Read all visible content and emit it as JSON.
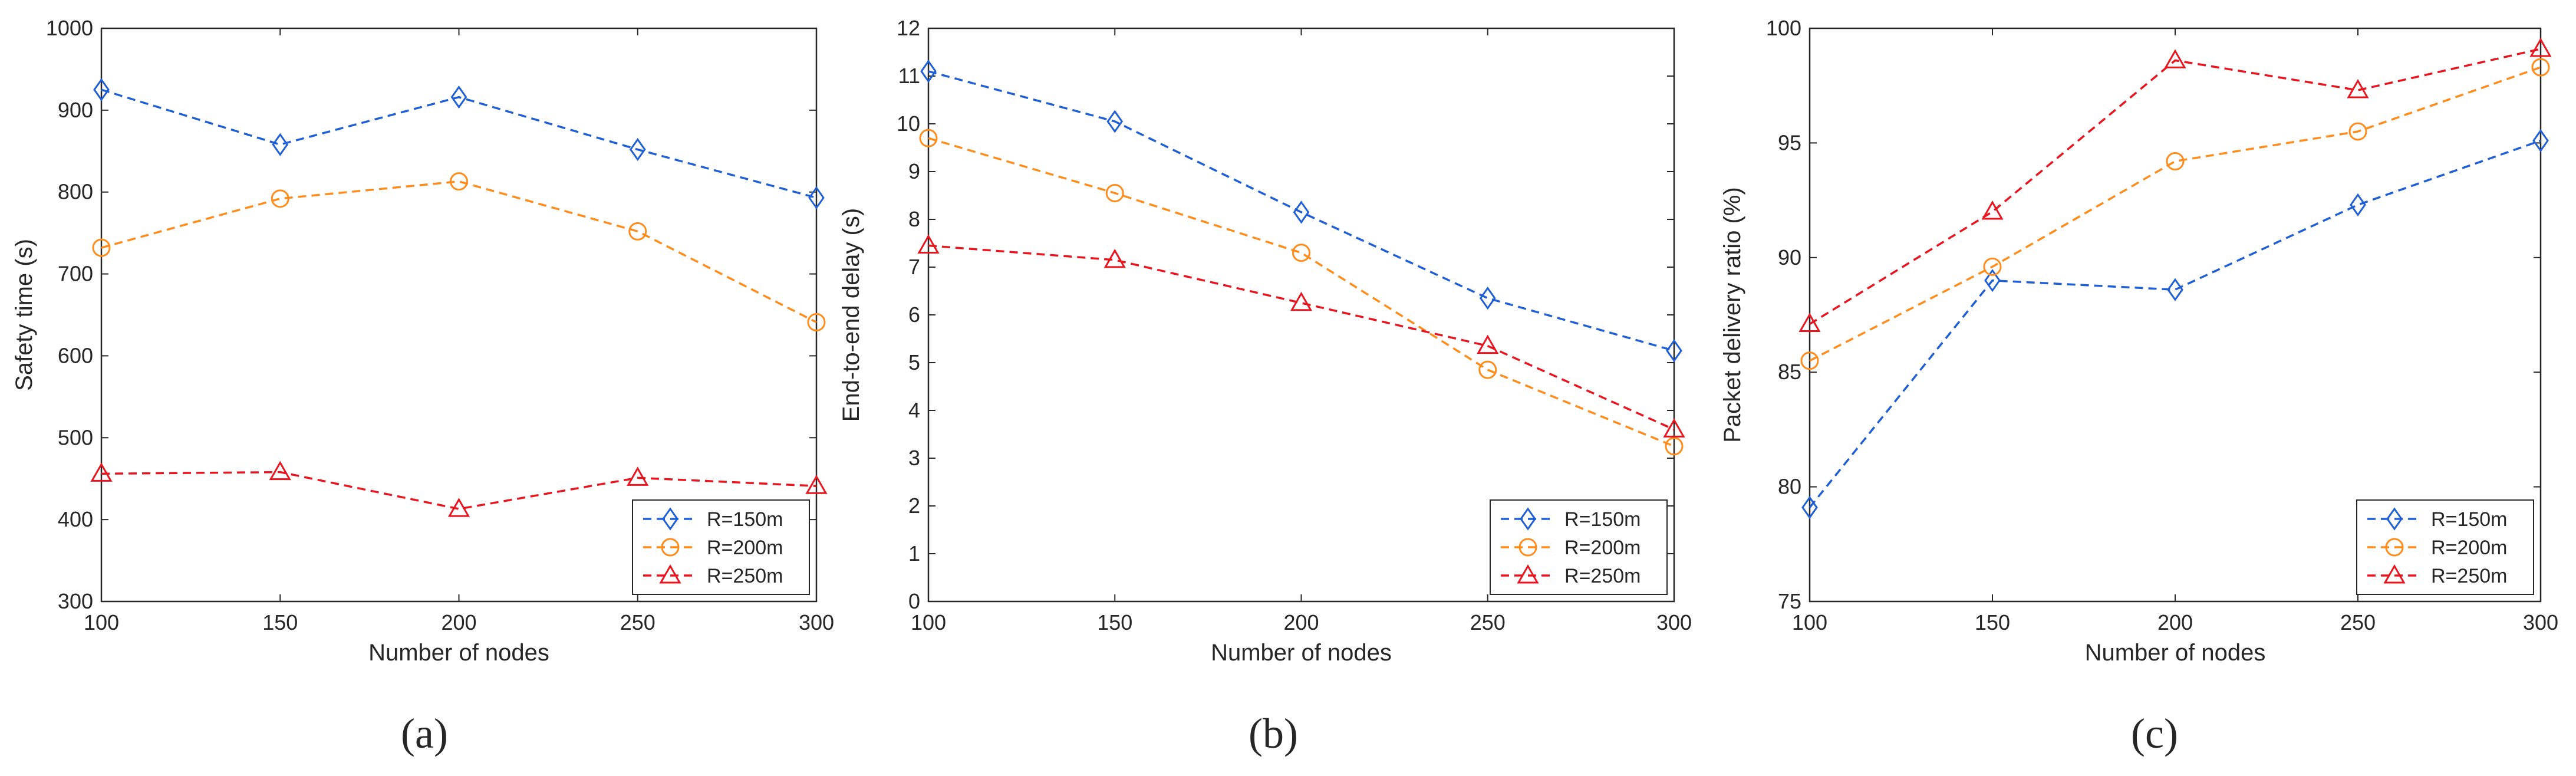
{
  "chart_data": [
    {
      "type": "line",
      "x": [
        100,
        150,
        200,
        250,
        300
      ],
      "xlabel": "Number of nodes",
      "ylabel": "Safety time (s)",
      "xlim": [
        100,
        300
      ],
      "ylim": [
        300,
        1000
      ],
      "xticks": [
        100,
        150,
        200,
        250,
        300
      ],
      "yticks": [
        300,
        400,
        500,
        600,
        700,
        800,
        900,
        1000
      ],
      "legend_position": "bottom-right",
      "caption": "(a)",
      "series": [
        {
          "name": "R=150m",
          "color": "#1f5fd6",
          "marker": "diamond",
          "values": [
            925,
            858,
            916,
            852,
            793
          ]
        },
        {
          "name": "R=200m",
          "color": "#ff8c1a",
          "marker": "circle",
          "values": [
            732,
            792,
            813,
            752,
            641
          ]
        },
        {
          "name": "R=250m",
          "color": "#e8141e",
          "marker": "triangle",
          "values": [
            456,
            458,
            413,
            451,
            441
          ]
        }
      ]
    },
    {
      "type": "line",
      "x": [
        100,
        150,
        200,
        250,
        300
      ],
      "xlabel": "Number of nodes",
      "ylabel": "End-to-end delay (s)",
      "xlim": [
        100,
        300
      ],
      "ylim": [
        0,
        12
      ],
      "xticks": [
        100,
        150,
        200,
        250,
        300
      ],
      "yticks": [
        0,
        1,
        2,
        3,
        4,
        5,
        6,
        7,
        8,
        9,
        10,
        11,
        12
      ],
      "legend_position": "bottom-right",
      "caption": "(b)",
      "series": [
        {
          "name": "R=150m",
          "color": "#1f5fd6",
          "marker": "diamond",
          "values": [
            11.1,
            10.05,
            8.15,
            6.35,
            5.25
          ]
        },
        {
          "name": "R=200m",
          "color": "#ff8c1a",
          "marker": "circle",
          "values": [
            9.7,
            8.55,
            7.3,
            4.85,
            3.25
          ]
        },
        {
          "name": "R=250m",
          "color": "#e8141e",
          "marker": "triangle",
          "values": [
            7.45,
            7.15,
            6.25,
            5.35,
            3.6
          ]
        }
      ]
    },
    {
      "type": "line",
      "x": [
        100,
        150,
        200,
        250,
        300
      ],
      "xlabel": "Number of nodes",
      "ylabel": "Packet delivery ratio (%)",
      "xlim": [
        100,
        300
      ],
      "ylim": [
        75,
        100
      ],
      "xticks": [
        100,
        150,
        200,
        250,
        300
      ],
      "yticks": [
        75,
        80,
        85,
        90,
        95,
        100
      ],
      "legend_position": "bottom-right",
      "caption": "(c)",
      "series": [
        {
          "name": "R=150m",
          "color": "#1f5fd6",
          "marker": "diamond",
          "values": [
            79.1,
            89.0,
            88.6,
            92.3,
            95.1
          ]
        },
        {
          "name": "R=200m",
          "color": "#ff8c1a",
          "marker": "circle",
          "values": [
            85.5,
            89.6,
            94.2,
            95.5,
            98.3
          ]
        },
        {
          "name": "R=250m",
          "color": "#e8141e",
          "marker": "triangle",
          "values": [
            87.1,
            92.0,
            98.6,
            97.3,
            99.1
          ]
        }
      ]
    }
  ]
}
